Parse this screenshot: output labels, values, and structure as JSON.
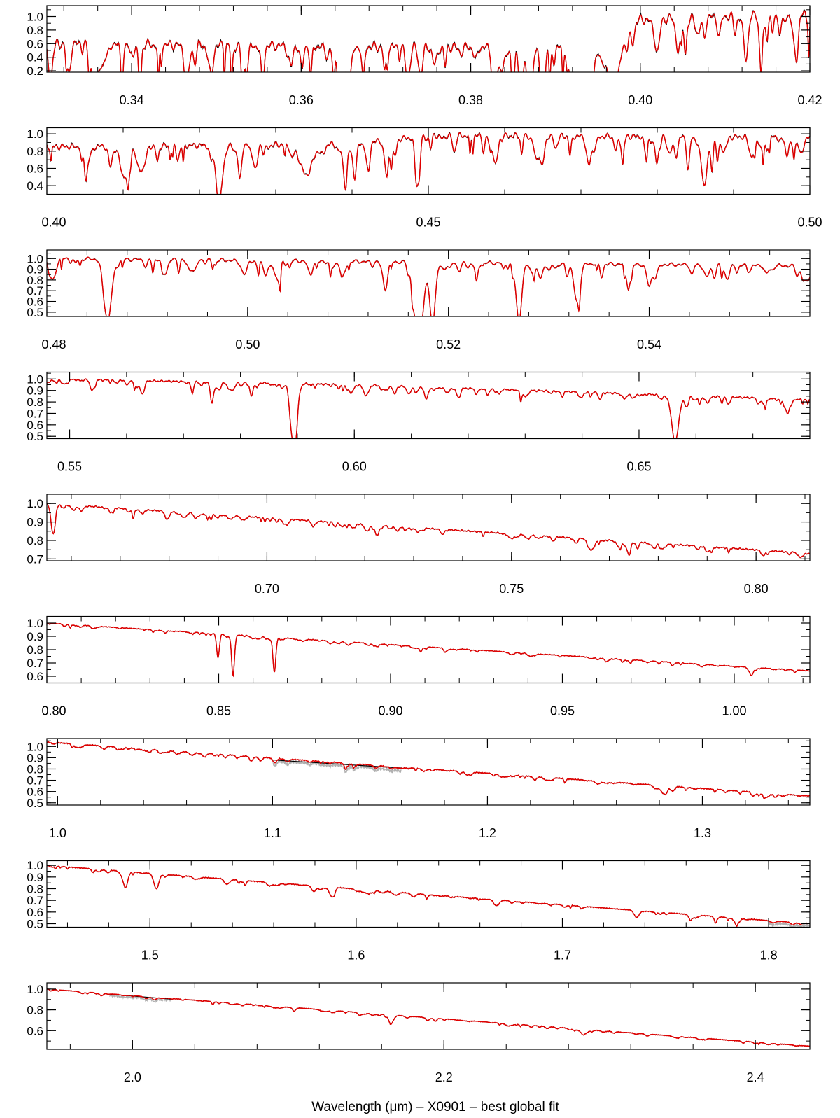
{
  "figure": {
    "xlabel": "Wavelength (μm) –  X0901  – best global fit"
  },
  "series_legend": {
    "observed": "#000000",
    "model": "#e00000",
    "masked": "#b0b0b0"
  },
  "chart_data": [
    {
      "type": "line",
      "xlim": [
        0.33,
        0.42
      ],
      "ylim": [
        0.18,
        1.16
      ],
      "xticks": [
        "0.34",
        "0.36",
        "0.38",
        "0.40",
        "0.42"
      ],
      "xtick_values": [
        0.34,
        0.36,
        0.38,
        0.4,
        0.42
      ],
      "yticks": [
        "0.2",
        "0.4",
        "0.6",
        "0.8",
        "1.0"
      ],
      "ytick_values": [
        0.2,
        0.4,
        0.6,
        0.8,
        1.0
      ],
      "continuum": [
        [
          0.33,
          0.6
        ],
        [
          0.37,
          0.55
        ],
        [
          0.392,
          0.55
        ],
        [
          0.399,
          0.95
        ],
        [
          0.42,
          1.05
        ]
      ],
      "noise": 0.22,
      "lines": [
        [
          0.3934,
          0.78,
          0.0009
        ],
        [
          0.3968,
          0.78,
          0.0009
        ],
        [
          0.3835,
          0.3,
          0.0006
        ]
      ],
      "masked_regions": []
    },
    {
      "type": "line",
      "xlim": [
        0.4,
        0.5
      ],
      "ylim": [
        0.3,
        1.07
      ],
      "xticks": [
        "0.40",
        "0.45",
        "0.50"
      ],
      "xtick_values": [
        0.4,
        0.45,
        0.5
      ],
      "yticks": [
        "0.4",
        "0.6",
        "0.8",
        "1.0"
      ],
      "ytick_values": [
        0.4,
        0.6,
        0.8,
        1.0
      ],
      "continuum": [
        [
          0.4,
          0.85
        ],
        [
          0.44,
          0.88
        ],
        [
          0.45,
          0.98
        ],
        [
          0.5,
          0.96
        ]
      ],
      "noise": 0.1,
      "lines": [
        [
          0.4101,
          0.35,
          0.0005
        ],
        [
          0.4226,
          0.45,
          0.0005
        ],
        [
          0.434,
          0.35,
          0.0008
        ],
        [
          0.4861,
          0.35,
          0.0005
        ]
      ],
      "masked_regions": []
    },
    {
      "type": "line",
      "xlim": [
        0.48,
        0.556
      ],
      "ylim": [
        0.46,
        1.08
      ],
      "xticks": [
        "0.48",
        "0.50",
        "0.52",
        "0.54"
      ],
      "xtick_values": [
        0.48,
        0.5,
        0.52,
        0.54
      ],
      "yticks": [
        "0.5",
        "0.6",
        "0.7",
        "0.8",
        "0.9",
        "1.0"
      ],
      "ytick_values": [
        0.5,
        0.6,
        0.7,
        0.8,
        0.9,
        1.0
      ],
      "continuum": [
        [
          0.48,
          1.0
        ],
        [
          0.556,
          0.93
        ]
      ],
      "noise": 0.05,
      "lines": [
        [
          0.4861,
          0.48,
          0.0004
        ],
        [
          0.5167,
          0.48,
          0.0003
        ],
        [
          0.5173,
          0.5,
          0.0003
        ],
        [
          0.5184,
          0.5,
          0.0003
        ],
        [
          0.527,
          0.4,
          0.0003
        ],
        [
          0.5328,
          0.35,
          0.0003
        ]
      ],
      "masked_regions": []
    },
    {
      "type": "line",
      "xlim": [
        0.546,
        0.68
      ],
      "ylim": [
        0.48,
        1.06
      ],
      "xticks": [
        "0.55",
        "0.60",
        "0.65"
      ],
      "xtick_values": [
        0.55,
        0.6,
        0.65
      ],
      "yticks": [
        "0.5",
        "0.6",
        "0.7",
        "0.8",
        "0.9",
        "1.0"
      ],
      "ytick_values": [
        0.5,
        0.6,
        0.7,
        0.8,
        0.9,
        1.0
      ],
      "continuum": [
        [
          0.546,
          1.0
        ],
        [
          0.6,
          0.95
        ],
        [
          0.68,
          0.82
        ]
      ],
      "noise": 0.025,
      "lines": [
        [
          0.589,
          0.32,
          0.0004
        ],
        [
          0.5896,
          0.3,
          0.0004
        ],
        [
          0.6563,
          0.38,
          0.0006
        ]
      ],
      "masked_regions": []
    },
    {
      "type": "line",
      "xlim": [
        0.655,
        0.811
      ],
      "ylim": [
        0.69,
        1.05
      ],
      "xticks": [
        "0.70",
        "0.75",
        "0.80"
      ],
      "xtick_values": [
        0.7,
        0.75,
        0.8
      ],
      "yticks": [
        "0.7",
        "0.8",
        "0.9",
        "1.0"
      ],
      "ytick_values": [
        0.7,
        0.8,
        0.9,
        1.0
      ],
      "continuum": [
        [
          0.655,
          1.0
        ],
        [
          0.811,
          0.73
        ]
      ],
      "noise": 0.012,
      "lines": [
        [
          0.6563,
          0.15,
          0.0004
        ],
        [
          0.7665,
          0.05,
          0.0005
        ]
      ],
      "masked_regions": []
    },
    {
      "type": "line",
      "xlim": [
        0.8,
        1.022
      ],
      "ylim": [
        0.55,
        1.05
      ],
      "xticks": [
        "0.80",
        "0.85",
        "0.90",
        "0.95",
        "1.00"
      ],
      "xtick_values": [
        0.8,
        0.85,
        0.9,
        0.95,
        1.0
      ],
      "yticks": [
        "0.6",
        "0.7",
        "0.8",
        "0.9",
        "1.0"
      ],
      "ytick_values": [
        0.6,
        0.7,
        0.8,
        0.9,
        1.0
      ],
      "continuum": [
        [
          0.8,
          1.0
        ],
        [
          1.022,
          0.64
        ]
      ],
      "noise": 0.008,
      "lines": [
        [
          0.8498,
          0.18,
          0.0004
        ],
        [
          0.8542,
          0.3,
          0.0004
        ],
        [
          0.8662,
          0.25,
          0.0004
        ],
        [
          1.005,
          0.06,
          0.0006
        ]
      ],
      "masked_regions": []
    },
    {
      "type": "line",
      "xlim": [
        0.995,
        1.35
      ],
      "ylim": [
        0.48,
        1.07
      ],
      "xticks": [
        "1.0",
        "1.1",
        "1.2",
        "1.3"
      ],
      "xtick_values": [
        1.0,
        1.1,
        1.2,
        1.3
      ],
      "yticks": [
        "0.5",
        "0.6",
        "0.7",
        "0.8",
        "0.9",
        "1.0"
      ],
      "ytick_values": [
        0.5,
        0.6,
        0.7,
        0.8,
        0.9,
        1.0
      ],
      "continuum": [
        [
          0.995,
          1.04
        ],
        [
          1.35,
          0.56
        ]
      ],
      "noise": 0.012,
      "lines": [
        [
          1.282,
          0.07,
          0.0012
        ]
      ],
      "masked_regions": [
        [
          1.1,
          1.16
        ]
      ]
    },
    {
      "type": "line",
      "xlim": [
        1.45,
        1.82
      ],
      "ylim": [
        0.47,
        1.04
      ],
      "xticks": [
        "1.5",
        "1.6",
        "1.7",
        "1.8"
      ],
      "xtick_values": [
        1.5,
        1.6,
        1.7,
        1.8
      ],
      "yticks": [
        "0.5",
        "0.6",
        "0.7",
        "0.8",
        "0.9",
        "1.0"
      ],
      "ytick_values": [
        0.5,
        0.6,
        0.7,
        0.8,
        0.9,
        1.0
      ],
      "continuum": [
        [
          1.45,
          1.0
        ],
        [
          1.82,
          0.5
        ]
      ],
      "noise": 0.01,
      "lines": [
        [
          1.488,
          0.12,
          0.0012
        ],
        [
          1.503,
          0.12,
          0.0012
        ],
        [
          1.588,
          0.07,
          0.0012
        ],
        [
          1.736,
          0.06,
          0.0012
        ]
      ],
      "masked_regions": [
        [
          1.8,
          1.82
        ]
      ]
    },
    {
      "type": "line",
      "xlim": [
        1.945,
        2.435
      ],
      "ylim": [
        0.42,
        1.06
      ],
      "xticks": [
        "2.0",
        "2.2",
        "2.4"
      ],
      "xtick_values": [
        2.0,
        2.2,
        2.4
      ],
      "yticks": [
        "0.6",
        "0.8",
        "1.0"
      ],
      "ytick_values": [
        0.6,
        0.8,
        1.0
      ],
      "continuum": [
        [
          1.945,
          1.0
        ],
        [
          2.435,
          0.45
        ]
      ],
      "noise": 0.008,
      "lines": [
        [
          2.1661,
          0.06,
          0.0018
        ],
        [
          2.29,
          0.04,
          0.0025
        ]
      ],
      "masked_regions": [
        [
          1.985,
          2.025
        ]
      ]
    }
  ]
}
